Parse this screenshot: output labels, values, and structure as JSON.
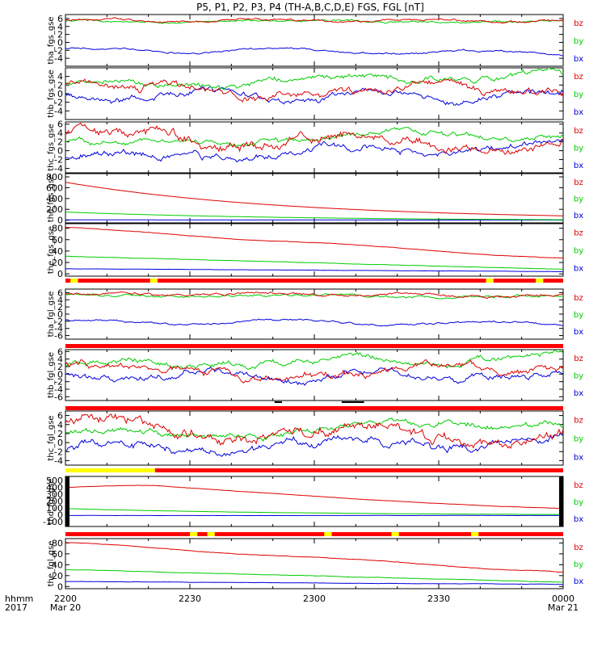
{
  "chart_data": {
    "type": "line",
    "title": "P5, P1, P2, P3, P4 (TH-A,B,C,D,E) FGS, FGL [nT]",
    "x_tick_labels": [
      "2200",
      "2230",
      "2300",
      "2330",
      "0000"
    ],
    "x_tick_sublabels": [
      "Mar 20",
      "",
      "",
      "",
      "Mar 21"
    ],
    "x_label_rows": [
      "hhmm",
      "2017"
    ],
    "x_range": [
      "2017-03-20 22:00",
      "2017-03-21 00:00"
    ],
    "series_colors": {
      "bz": "#dd0000",
      "by": "#00cc00",
      "bx": "#0000dd"
    },
    "legend_order": [
      "bz",
      "by",
      "bx"
    ],
    "grid": false,
    "panels": [
      {
        "ylabel": "tha_fgs_gse",
        "ylim": [
          -6,
          7
        ],
        "yticks": [
          "-4",
          "-2",
          "0",
          "2",
          "4",
          "6"
        ],
        "series": [
          {
            "name": "bz",
            "start": 5.6,
            "end": 5.5,
            "noise": 0.3,
            "waves": [
              [
                0.3,
                3.0,
                0.4
              ]
            ]
          },
          {
            "name": "by",
            "start": 5.3,
            "end": 5.2,
            "noise": 0.25,
            "waves": [
              [
                0.3,
                2.0,
                1.5
              ]
            ]
          },
          {
            "name": "bx",
            "start": -1.8,
            "end": -2.7,
            "noise": 0.25,
            "waves": [
              [
                0.5,
                2.5,
                0.7
              ]
            ]
          }
        ]
      },
      {
        "ylabel": "thb_fgs_gse",
        "ylim": [
          -6,
          6
        ],
        "yticks": [
          "-4",
          "-2",
          "0",
          "2",
          "4"
        ],
        "series": [
          {
            "name": "bz",
            "start": 1.2,
            "end": 0.5,
            "noise": 0.9,
            "waves": [
              [
                1.4,
                1.5,
                0.6
              ],
              [
                0.7,
                4.0,
                1.9
              ]
            ]
          },
          {
            "name": "by",
            "start": 2.0,
            "end": 4.3,
            "noise": 0.7,
            "waves": [
              [
                0.9,
                2.2,
                0.4
              ]
            ]
          },
          {
            "name": "bx",
            "start": -0.3,
            "end": -0.5,
            "noise": 0.8,
            "waves": [
              [
                1.0,
                3.0,
                2.4
              ]
            ]
          }
        ]
      },
      {
        "ylabel": "thc_fgs_gse",
        "ylim": [
          -5,
          6.5
        ],
        "yticks": [
          "-4",
          "-2",
          "0",
          "2",
          "4",
          "6"
        ],
        "series": [
          {
            "name": "bz",
            "start": 4.0,
            "end": 0.8,
            "noise": 1.2,
            "waves": [
              [
                1.5,
                2.0,
                0.5
              ]
            ]
          },
          {
            "name": "by",
            "start": 1.5,
            "end": 4.0,
            "noise": 0.6,
            "waves": [
              [
                0.8,
                1.6,
                1.1
              ]
            ]
          },
          {
            "name": "bx",
            "start": -1.8,
            "end": 1.0,
            "noise": 0.8,
            "waves": [
              [
                1.2,
                2.2,
                0.3
              ]
            ]
          }
        ]
      },
      {
        "ylabel": "thd_fgs_gse",
        "ylim": [
          -50,
          860
        ],
        "yticks": [
          "0",
          "200",
          "400",
          "600",
          "800"
        ],
        "series": [
          {
            "name": "bz",
            "start": 700,
            "end": 80,
            "shape": "exp",
            "noise": 0,
            "waves": []
          },
          {
            "name": "by",
            "start": 150,
            "end": 8,
            "shape": "exp",
            "noise": 0,
            "waves": []
          },
          {
            "name": "bx",
            "start": 5,
            "end": 2,
            "noise": 0,
            "waves": []
          }
        ]
      },
      {
        "ylabel": "the_fgs_gse",
        "ylim": [
          -4,
          88
        ],
        "yticks": [
          "0",
          "20",
          "40",
          "60",
          "80"
        ],
        "series": [
          {
            "name": "bz",
            "start": 81,
            "end": 27,
            "noise": 0.4,
            "waves": [
              [
                1.5,
                2.0,
                0.5
              ]
            ]
          },
          {
            "name": "by",
            "start": 31,
            "end": 8,
            "noise": 0.3,
            "waves": []
          },
          {
            "name": "bx",
            "start": 9,
            "end": 4,
            "noise": 0.2,
            "waves": []
          }
        ]
      },
      {
        "ylabel": "tha_fgl_gse",
        "ylim": [
          -7,
          7
        ],
        "yticks": [
          "-6",
          "-4",
          "-2",
          "0",
          "2",
          "4",
          "6"
        ],
        "series": [
          {
            "name": "bz",
            "start": 5.6,
            "end": 5.4,
            "noise": 0.35,
            "waves": [
              [
                0.3,
                3.0,
                0.4
              ]
            ]
          },
          {
            "name": "by",
            "start": 5.2,
            "end": 5.0,
            "noise": 0.35,
            "waves": [
              [
                0.3,
                2.0,
                1.5
              ]
            ]
          },
          {
            "name": "bx",
            "start": -2.0,
            "end": -2.8,
            "noise": 0.3,
            "waves": [
              [
                0.5,
                2.5,
                0.7
              ]
            ]
          }
        ]
      },
      {
        "ylabel": "thb_fgl_gse",
        "ylim": [
          -7,
          6.5
        ],
        "yticks": [
          "-6",
          "-4",
          "-2",
          "0",
          "2",
          "4",
          "6"
        ],
        "series": [
          {
            "name": "bz",
            "start": 1.2,
            "end": 0.4,
            "noise": 1.0,
            "waves": [
              [
                1.4,
                1.5,
                0.6
              ],
              [
                0.7,
                4.0,
                1.9
              ]
            ]
          },
          {
            "name": "by",
            "start": 2.2,
            "end": 4.6,
            "noise": 0.8,
            "waves": [
              [
                0.9,
                2.2,
                0.4
              ]
            ]
          },
          {
            "name": "bx",
            "start": -0.5,
            "end": -0.3,
            "noise": 0.9,
            "waves": [
              [
                1.0,
                3.0,
                2.4
              ]
            ]
          }
        ]
      },
      {
        "ylabel": "thc_fgl_gse",
        "ylim": [
          -5,
          7
        ],
        "yticks": [
          "-4",
          "-2",
          "0",
          "2",
          "4",
          "6"
        ],
        "series": [
          {
            "name": "bz",
            "start": 4.0,
            "end": 0.8,
            "noise": 1.3,
            "waves": [
              [
                1.5,
                2.0,
                0.5
              ]
            ]
          },
          {
            "name": "by",
            "start": 1.5,
            "end": 4.3,
            "noise": 0.7,
            "waves": [
              [
                0.8,
                1.6,
                1.1
              ]
            ]
          },
          {
            "name": "bx",
            "start": -1.8,
            "end": 0.8,
            "noise": 0.9,
            "waves": [
              [
                1.2,
                2.2,
                0.3
              ]
            ]
          }
        ]
      },
      {
        "ylabel": "thd_fgl_gse",
        "ylim": [
          -170,
          560
        ],
        "yticks": [
          "-100",
          "0",
          "100",
          "200",
          "300",
          "400",
          "500"
        ],
        "series": [
          {
            "name": "bz",
            "start": 400,
            "end": 95,
            "shape": "hump",
            "noise": 2,
            "waves": []
          },
          {
            "name": "by",
            "start": 92,
            "end": 5,
            "shape": "exp",
            "noise": 1,
            "waves": []
          },
          {
            "name": "bx",
            "start": -10,
            "end": -10,
            "noise": 1,
            "waves": []
          }
        ]
      },
      {
        "ylabel": "the_fgl_gse",
        "ylim": [
          -4,
          88
        ],
        "yticks": [
          "0",
          "20",
          "40",
          "60",
          "80"
        ],
        "series": [
          {
            "name": "bz",
            "start": 80,
            "end": 26,
            "noise": 0.5,
            "waves": [
              [
                1.5,
                2.0,
                0.5
              ]
            ]
          },
          {
            "name": "by",
            "start": 31,
            "end": 8,
            "noise": 0.4,
            "waves": []
          },
          {
            "name": "bx",
            "start": 9,
            "end": 4,
            "noise": 0.3,
            "waves": []
          }
        ]
      }
    ],
    "mode_bars": [
      {
        "after_panel": 4,
        "base": "red",
        "segments": [
          [
            0.01,
            0.025,
            "yellow"
          ],
          [
            0.17,
            0.185,
            "yellow"
          ],
          [
            0.845,
            0.86,
            "yellow"
          ],
          [
            0.945,
            0.96,
            "yellow"
          ]
        ]
      },
      {
        "after_panel": 5,
        "base": "red",
        "segments": []
      },
      {
        "after_panel": 6,
        "base": "red",
        "segments": [],
        "black_ticks": [
          [
            0.42,
            0.435
          ],
          [
            0.555,
            0.565
          ],
          [
            0.565,
            0.6
          ]
        ]
      },
      {
        "after_panel": 7,
        "base": "red",
        "segments": [
          [
            0.0,
            0.18,
            "yellow"
          ]
        ]
      },
      {
        "after_panel": 8,
        "base": "red",
        "segments": [
          [
            0.25,
            0.265,
            "yellow"
          ],
          [
            0.285,
            0.3,
            "yellow"
          ],
          [
            0.52,
            0.535,
            "yellow"
          ],
          [
            0.655,
            0.67,
            "yellow"
          ],
          [
            0.815,
            0.83,
            "yellow"
          ]
        ]
      }
    ]
  }
}
